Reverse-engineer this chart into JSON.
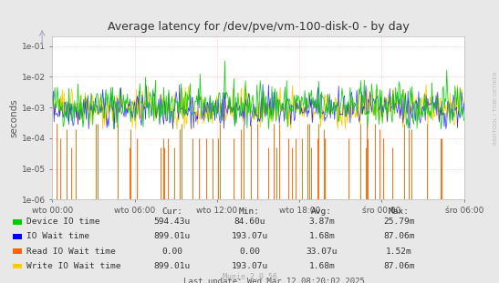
{
  "title": "Average latency for /dev/pve/vm-100-disk-0 - by day",
  "ylabel": "seconds",
  "watermark": "RRDTOOL / TOBI OETIKER",
  "munin_version": "Munin 2.0.56",
  "last_update": "Last update: Wed Mar 12 08:20:02 2025",
  "xtick_labels": [
    "wto 00:00",
    "wto 06:00",
    "wto 12:00",
    "wto 18:00",
    "śro 00:00",
    "śro 06:00"
  ],
  "background_color": "#e8e8e8",
  "plot_bg_color": "#ffffff",
  "grid_color": "#ff9999",
  "colors": {
    "device_io": "#00cc00",
    "io_wait": "#0000ff",
    "read_io_wait": "#ff6600",
    "write_io_wait": "#ffcc00"
  },
  "legend_items": [
    {
      "label": "Device IO time",
      "color": "#00cc00"
    },
    {
      "label": "IO Wait time",
      "color": "#0000ff"
    },
    {
      "label": "Read IO Wait time",
      "color": "#ff6600"
    },
    {
      "label": "Write IO Wait time",
      "color": "#ffcc00"
    }
  ],
  "stats": {
    "headers": [
      "Cur:",
      "Min:",
      "Avg:",
      "Max:"
    ],
    "rows": [
      [
        "Device IO time",
        "594.43u",
        "84.60u",
        "3.87m",
        "25.79m"
      ],
      [
        "IO Wait time",
        "899.01u",
        "193.07u",
        "1.68m",
        "87.06m"
      ],
      [
        "Read IO Wait time",
        "0.00",
        "0.00",
        "33.07u",
        "1.52m"
      ],
      [
        "Write IO Wait time",
        "899.01u",
        "193.07u",
        "1.68m",
        "87.06m"
      ]
    ]
  },
  "n_points": 500,
  "seed": 42
}
